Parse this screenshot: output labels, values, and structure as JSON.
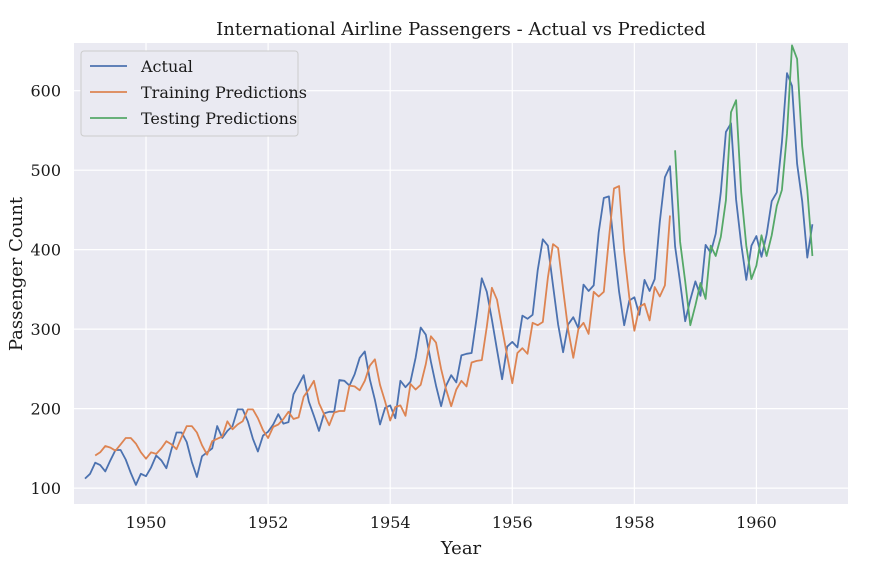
{
  "chart_data": {
    "type": "line",
    "title": "International Airline Passengers - Actual vs Predicted",
    "xlabel": "Year",
    "ylabel": "Passenger Count",
    "xlim": [
      1948.82,
      1961.5
    ],
    "ylim": [
      80,
      660
    ],
    "xticks": [
      1950,
      1952,
      1954,
      1956,
      1958,
      1960
    ],
    "yticks": [
      100,
      200,
      300,
      400,
      500,
      600
    ],
    "grid": true,
    "legend_position": "top-left",
    "x_start": 1949.0,
    "x_step": 0.0833333,
    "series": [
      {
        "name": "Actual",
        "color": "#4c72b0",
        "start_index": 0,
        "values": [
          112,
          118,
          132,
          129,
          121,
          135,
          148,
          148,
          136,
          119,
          104,
          118,
          115,
          126,
          141,
          135,
          125,
          149,
          170,
          170,
          158,
          133,
          114,
          140,
          145,
          150,
          178,
          163,
          172,
          178,
          199,
          199,
          184,
          162,
          146,
          166,
          171,
          180,
          193,
          181,
          183,
          218,
          230,
          242,
          209,
          191,
          172,
          194,
          196,
          196,
          236,
          235,
          229,
          243,
          264,
          272,
          237,
          211,
          180,
          201,
          204,
          188,
          235,
          227,
          234,
          264,
          302,
          293,
          259,
          229,
          203,
          229,
          242,
          233,
          267,
          269,
          270,
          315,
          364,
          347,
          312,
          274,
          237,
          278,
          284,
          277,
          317,
          313,
          318,
          374,
          413,
          405,
          355,
          306,
          271,
          306,
          315,
          301,
          356,
          348,
          355,
          422,
          465,
          467,
          404,
          347,
          305,
          336,
          340,
          318,
          362,
          348,
          363,
          435,
          491,
          505,
          404,
          359,
          310,
          337,
          360,
          342,
          406,
          396,
          420,
          472,
          548,
          559,
          463,
          407,
          362,
          405,
          417,
          391,
          419,
          461,
          472,
          535,
          622,
          606,
          508,
          461,
          390,
          432
        ]
      },
      {
        "name": "Training Predictions",
        "color": "#dd8452",
        "start_index": 2,
        "values": [
          141,
          145,
          153,
          151,
          147,
          155,
          163,
          163,
          156,
          145,
          137,
          145,
          143,
          150,
          159,
          155,
          149,
          164,
          178,
          178,
          170,
          154,
          142,
          159,
          162,
          165,
          184,
          174,
          180,
          184,
          199,
          199,
          188,
          173,
          163,
          177,
          180,
          187,
          196,
          187,
          189,
          215,
          224,
          235,
          207,
          193,
          179,
          195,
          197,
          197,
          229,
          228,
          223,
          235,
          254,
          262,
          230,
          209,
          185,
          202,
          204,
          191,
          231,
          224,
          230,
          256,
          291,
          283,
          250,
          224,
          203,
          224,
          235,
          228,
          258,
          260,
          261,
          303,
          352,
          337,
          301,
          266,
          232,
          270,
          276,
          269,
          308,
          305,
          309,
          365,
          407,
          402,
          350,
          299,
          264,
          300,
          308,
          294,
          347,
          341,
          347,
          413,
          477,
          480,
          397,
          340,
          298,
          328,
          332,
          311,
          353,
          341,
          355,
          443
        ]
      },
      {
        "name": "Testing Predictions",
        "color": "#55a868",
        "start_index": 116,
        "values": [
          525,
          410,
          360,
          305,
          330,
          358,
          338,
          405,
          392,
          416,
          462,
          573,
          588,
          472,
          405,
          363,
          380,
          418,
          392,
          418,
          455,
          475,
          546,
          657,
          640,
          530,
          475,
          392
        ]
      }
    ]
  }
}
